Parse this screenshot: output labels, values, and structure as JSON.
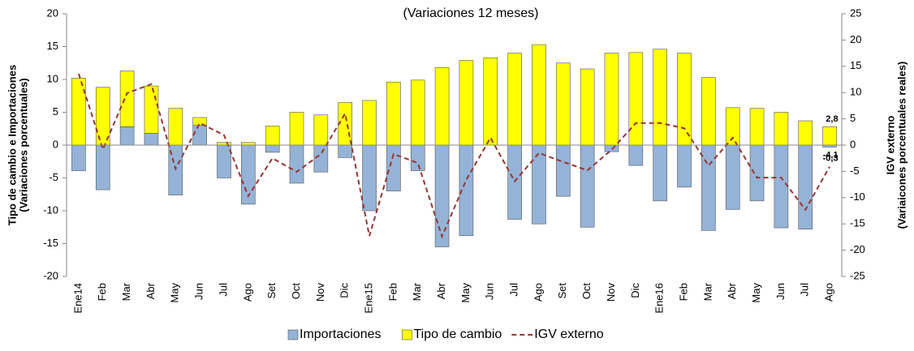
{
  "chart_data": {
    "type": "bar-line",
    "subtitle": "(Variaciones 12 meses)",
    "y_label": [
      "Tipo de cambio e Importaciones",
      "(Variaciones porcentuales)"
    ],
    "y2_label": [
      "IGV externo",
      "(Variaicones porcentuales reales)"
    ],
    "categories": [
      "Ene14",
      "Feb",
      "Mar",
      "Abr",
      "May",
      "Jun",
      "Jul",
      "Ago",
      "Set",
      "Oct",
      "Nov",
      "Dic",
      "Ene15",
      "Feb",
      "Mar",
      "Abr",
      "May",
      "Jun",
      "Jul",
      "Ago",
      "Set",
      "Oct",
      "Nov",
      "Dic",
      "Ene16",
      "Feb",
      "Mar",
      "Abr",
      "May",
      "Jun",
      "Jul",
      "Ago"
    ],
    "series": [
      {
        "name": "Importaciones",
        "type": "bar",
        "color": "#95b3d7",
        "values": [
          -3.9,
          -6.8,
          2.8,
          1.8,
          -7.6,
          3.0,
          -5.0,
          -9.0,
          -1.1,
          -5.8,
          -4.1,
          -1.9,
          -10.0,
          -7.0,
          -3.9,
          -15.5,
          -13.8,
          0,
          -11.3,
          -12.0,
          -7.8,
          -12.5,
          -1.0,
          -3.1,
          -8.5,
          -6.4,
          -13.0,
          -9.8,
          -8.5,
          -12.6,
          -12.8,
          -0.3
        ],
        "value_labels": [
          null,
          null,
          null,
          null,
          null,
          null,
          null,
          null,
          null,
          null,
          null,
          null,
          null,
          null,
          null,
          null,
          null,
          null,
          null,
          null,
          null,
          null,
          null,
          null,
          null,
          null,
          null,
          null,
          null,
          null,
          null,
          "-0,3"
        ]
      },
      {
        "name": "Tipo de cambio",
        "type": "bar",
        "color": "#ffff00",
        "values": [
          10.2,
          8.8,
          8.5,
          7.2,
          5.6,
          1.2,
          0.4,
          0.4,
          2.9,
          5.0,
          4.6,
          6.5,
          6.8,
          9.6,
          9.9,
          11.8,
          12.9,
          13.3,
          14.0,
          15.3,
          12.5,
          11.6,
          14.0,
          14.1,
          14.6,
          14.0,
          10.3,
          5.7,
          5.6,
          5.0,
          3.7,
          2.8
        ],
        "value_labels": [
          null,
          null,
          null,
          null,
          null,
          null,
          null,
          null,
          null,
          null,
          null,
          null,
          null,
          null,
          null,
          null,
          null,
          null,
          null,
          null,
          null,
          null,
          null,
          null,
          null,
          null,
          null,
          null,
          null,
          null,
          null,
          "2,8"
        ]
      },
      {
        "name": "IGV externo",
        "type": "line",
        "axis": "y2",
        "color": "#953735",
        "values": [
          13.6,
          -0.8,
          9.9,
          11.6,
          -4.5,
          4.2,
          1.9,
          -9.7,
          -2.5,
          -5.1,
          -1.7,
          6.0,
          -17.3,
          -1.7,
          -3.4,
          -17.4,
          -6.6,
          1.4,
          -6.9,
          -1.5,
          -3.2,
          -4.8,
          -0.9,
          4.2,
          4.2,
          3.2,
          -3.9,
          1.4,
          -6.2,
          -6.2,
          -12.3,
          -4.1
        ],
        "value_labels": [
          null,
          null,
          null,
          null,
          null,
          null,
          null,
          null,
          null,
          null,
          null,
          null,
          null,
          null,
          null,
          null,
          null,
          null,
          null,
          null,
          null,
          null,
          null,
          null,
          null,
          null,
          null,
          null,
          null,
          null,
          null,
          "-4,1"
        ]
      }
    ],
    "ylim": [
      -20,
      20
    ],
    "yticks": [
      -20,
      -15,
      -10,
      -5,
      0,
      5,
      10,
      15,
      20
    ],
    "y2lim": [
      -25,
      25
    ],
    "y2ticks": [
      -25,
      -20,
      -15,
      -10,
      -5,
      0,
      5,
      10,
      15,
      20,
      25
    ],
    "legend": "bottom"
  }
}
